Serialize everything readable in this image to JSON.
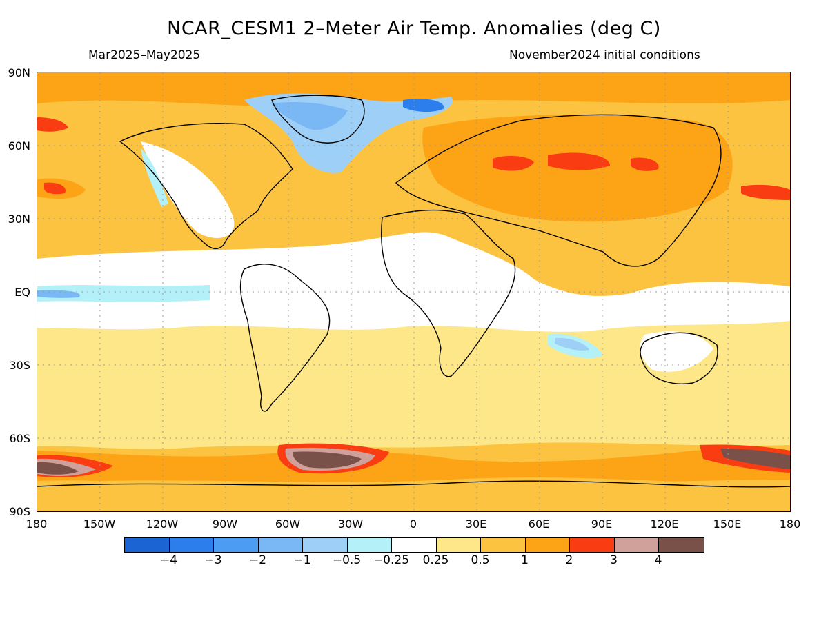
{
  "title": "NCAR_CESM1 2–Meter Air Temp. Anomalies (deg C)",
  "period": "Mar2025–May2025",
  "init": "November2024 initial conditions",
  "lat_labels": [
    "90N",
    "60N",
    "30N",
    "EQ",
    "30S",
    "60S",
    "90S"
  ],
  "lon_labels": [
    "180",
    "150W",
    "120W",
    "90W",
    "60W",
    "30W",
    "0",
    "30E",
    "60E",
    "90E",
    "120E",
    "150E",
    "180"
  ],
  "colorbar": {
    "colors": [
      "#1a64d4",
      "#2b7eec",
      "#4b9cf2",
      "#7ab8f5",
      "#9ed0f7",
      "#b4f0f8",
      "#ffffff",
      "#fde788",
      "#fcc340",
      "#fca316",
      "#fa3c12",
      "#d0a09a",
      "#7a5148"
    ],
    "labels": [
      "−4",
      "−3",
      "−2",
      "−1",
      "−0.5",
      "−0.25",
      "0.25",
      "0.5",
      "1",
      "2",
      "3",
      "4"
    ]
  }
}
